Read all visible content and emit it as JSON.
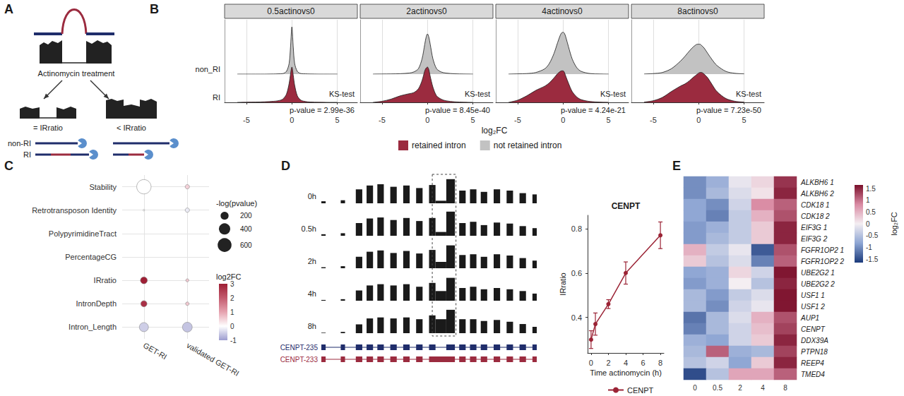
{
  "panel_letters": [
    "A",
    "B",
    "C",
    "D",
    "E"
  ],
  "panel_a": {
    "treatment": "Actinomycin treatment",
    "results": [
      "= IRratio",
      "< IRratio"
    ],
    "transcripts": [
      "non-RI",
      "RI"
    ]
  },
  "panel_d_tracks": {
    "window": [
      0,
      100
    ],
    "height_range": [
      0,
      1
    ],
    "segments": [
      [
        0,
        2
      ],
      [
        9,
        11
      ],
      [
        16,
        19
      ],
      [
        21,
        24
      ],
      [
        26,
        29
      ],
      [
        32,
        35
      ],
      [
        38,
        41
      ],
      [
        44,
        47
      ],
      [
        50,
        53
      ],
      [
        53,
        58
      ],
      [
        58,
        62
      ],
      [
        64,
        67
      ],
      [
        69,
        72
      ],
      [
        74,
        77
      ],
      [
        80,
        83
      ],
      [
        86,
        89
      ],
      [
        92,
        95
      ],
      [
        98,
        100
      ]
    ],
    "tracks": [
      {
        "label": "0h",
        "heights": [
          0.08,
          0.12,
          0.55,
          0.7,
          0.75,
          0.65,
          0.7,
          0.6,
          0.72,
          0.1,
          0.95,
          0.5,
          0.55,
          0.45,
          0.55,
          0.5,
          0.4,
          0.35
        ]
      },
      {
        "label": "0.5h",
        "heights": [
          0.06,
          0.1,
          0.5,
          0.68,
          0.72,
          0.62,
          0.7,
          0.58,
          0.7,
          0.15,
          0.95,
          0.5,
          0.55,
          0.42,
          0.52,
          0.48,
          0.38,
          0.3
        ]
      },
      {
        "label": "2h",
        "heights": [
          0.04,
          0.08,
          0.45,
          0.65,
          0.7,
          0.6,
          0.68,
          0.58,
          0.72,
          0.25,
          0.9,
          0.52,
          0.55,
          0.45,
          0.55,
          0.5,
          0.4,
          0.3
        ]
      },
      {
        "label": "4h",
        "heights": [
          0.03,
          0.06,
          0.4,
          0.6,
          0.65,
          0.6,
          0.65,
          0.55,
          0.7,
          0.38,
          0.9,
          0.5,
          0.55,
          0.45,
          0.5,
          0.45,
          0.38,
          0.28
        ]
      },
      {
        "label": "8h",
        "heights": [
          0.02,
          0.05,
          0.35,
          0.58,
          0.62,
          0.58,
          0.62,
          0.55,
          0.7,
          0.55,
          0.92,
          0.55,
          0.55,
          0.48,
          0.52,
          0.45,
          0.36,
          0.25
        ]
      }
    ],
    "highlight": [
      51.5,
      62.5
    ],
    "transcripts": [
      {
        "name": "CENPT-235",
        "color": "#1f2d6b",
        "exons": [
          [
            0,
            2
          ],
          [
            9,
            11
          ],
          [
            16,
            19
          ],
          [
            21,
            24
          ],
          [
            26,
            29
          ],
          [
            32,
            35
          ],
          [
            38,
            41
          ],
          [
            44,
            47
          ],
          [
            50,
            53
          ],
          [
            58,
            62
          ],
          [
            64,
            67
          ],
          [
            69,
            72
          ],
          [
            74,
            77
          ],
          [
            80,
            83
          ],
          [
            86,
            89
          ],
          [
            92,
            95
          ],
          [
            98,
            100
          ]
        ]
      },
      {
        "name": "CENPT-233",
        "color": "#9b2b3f",
        "exons": [
          [
            0,
            2
          ],
          [
            9,
            11
          ],
          [
            16,
            19
          ],
          [
            21,
            24
          ],
          [
            26,
            29
          ],
          [
            32,
            35
          ],
          [
            38,
            41
          ],
          [
            44,
            47
          ],
          [
            50,
            62
          ],
          [
            64,
            67
          ],
          [
            69,
            72
          ],
          [
            74,
            77
          ],
          [
            80,
            83
          ],
          [
            86,
            89
          ],
          [
            92,
            95
          ],
          [
            98,
            100
          ]
        ]
      }
    ]
  },
  "chart_data": [
    {
      "type": "ridgeline",
      "x": [
        -6,
        -5,
        -4,
        -3,
        -2,
        -1.5,
        -1,
        -0.6,
        -0.3,
        -0.15,
        0,
        0.15,
        0.3,
        0.6,
        1,
        1.5,
        2,
        3,
        4,
        5
      ],
      "xlim": [
        -7.4,
        7.2
      ],
      "xticks": [
        -5,
        0,
        5
      ],
      "ylim": [
        0,
        1
      ],
      "grid": true,
      "tick_labels": "x",
      "x_label": "log₂FC",
      "rows": [
        "non_RI",
        "RI"
      ],
      "legend": "bottom",
      "facets": [
        {
          "title": "0.5actinovs0",
          "annotation": [
            "KS-test",
            "p-value = 2.99e-36"
          ],
          "series": [
            {
              "name": "retained intron",
              "row": "RI",
              "color": "#9b2b3f",
              "values": [
                0,
                0.003,
                0.005,
                0.01,
                0.02,
                0.03,
                0.06,
                0.15,
                0.35,
                0.52,
                0.65,
                0.5,
                0.32,
                0.12,
                0.04,
                0.015,
                0.006,
                0.002,
                0,
                0
              ]
            },
            {
              "name": "not retained intron",
              "row": "non_RI",
              "color": "#c2c2c2",
              "values": [
                0,
                0,
                0,
                0,
                0.002,
                0.005,
                0.01,
                0.05,
                0.2,
                0.5,
                0.87,
                0.5,
                0.2,
                0.05,
                0.01,
                0.005,
                0.002,
                0,
                0,
                0
              ]
            }
          ]
        },
        {
          "title": "2actinovs0",
          "annotation": [
            "KS-test",
            "p-value = 8.45e-40"
          ],
          "series": [
            {
              "name": "retained intron",
              "row": "RI",
              "color": "#9b2b3f",
              "values": [
                0,
                0.02,
                0.06,
                0.12,
                0.16,
                0.18,
                0.25,
                0.4,
                0.58,
                0.63,
                0.65,
                0.6,
                0.48,
                0.28,
                0.12,
                0.06,
                0.03,
                0.01,
                0.003,
                0
              ]
            },
            {
              "name": "not retained intron",
              "row": "non_RI",
              "color": "#c2c2c2",
              "values": [
                0,
                0.002,
                0.004,
                0.008,
                0.02,
                0.04,
                0.1,
                0.28,
                0.55,
                0.68,
                0.74,
                0.68,
                0.55,
                0.28,
                0.1,
                0.04,
                0.02,
                0.006,
                0.002,
                0
              ]
            }
          ]
        },
        {
          "title": "4actinovs0",
          "annotation": [
            "KS-test",
            "p-value = 4.24e-21"
          ],
          "series": [
            {
              "name": "retained intron",
              "row": "RI",
              "color": "#9b2b3f",
              "values": [
                0,
                0.04,
                0.12,
                0.22,
                0.3,
                0.36,
                0.45,
                0.53,
                0.57,
                0.58,
                0.58,
                0.55,
                0.48,
                0.35,
                0.2,
                0.1,
                0.05,
                0.015,
                0.005,
                0
              ]
            },
            {
              "name": "not retained intron",
              "row": "non_RI",
              "color": "#c2c2c2",
              "values": [
                0,
                0.005,
                0.01,
                0.03,
                0.1,
                0.2,
                0.38,
                0.58,
                0.72,
                0.76,
                0.77,
                0.75,
                0.68,
                0.5,
                0.28,
                0.12,
                0.05,
                0.01,
                0.003,
                0
              ]
            }
          ]
        },
        {
          "title": "8actinovs0",
          "annotation": [
            "KS-test",
            "p-value = 7.23e-50"
          ],
          "series": [
            {
              "name": "retained intron",
              "row": "RI",
              "color": "#9b2b3f",
              "values": [
                0.005,
                0.03,
                0.09,
                0.2,
                0.3,
                0.34,
                0.4,
                0.46,
                0.5,
                0.52,
                0.54,
                0.55,
                0.55,
                0.52,
                0.45,
                0.32,
                0.2,
                0.07,
                0.02,
                0.005
              ]
            },
            {
              "name": "not retained intron",
              "row": "non_RI",
              "color": "#c2c2c2",
              "values": [
                0.002,
                0.01,
                0.03,
                0.1,
                0.24,
                0.33,
                0.43,
                0.5,
                0.54,
                0.55,
                0.55,
                0.55,
                0.53,
                0.48,
                0.38,
                0.26,
                0.16,
                0.05,
                0.015,
                0.005
              ]
            }
          ]
        }
      ]
    },
    {
      "type": "dot",
      "categories": [
        "Stability",
        "Retrotransposon Identity",
        "PolypyrimidineTract",
        "PercentageCG",
        "IRratio",
        "IntronDepth",
        "Intron_Length"
      ],
      "series": [
        {
          "name": "GET-RI",
          "values": [
            0.0,
            0.0,
            null,
            null,
            3.0,
            2.7,
            -0.5
          ],
          "sizes": [
            650,
            8,
            null,
            null,
            150,
            120,
            260
          ]
        },
        {
          "name": "validated GET-RI",
          "values": [
            0.5,
            -0.2,
            null,
            null,
            0.6,
            0.6,
            -0.6
          ],
          "sizes": [
            60,
            60,
            null,
            null,
            30,
            40,
            300
          ]
        }
      ],
      "size_legend": {
        "title": "-log(pvalue)",
        "values": [
          200,
          400,
          600
        ]
      },
      "color_legend": {
        "title": "log2FC",
        "range": [
          -1,
          3
        ],
        "ticks": [
          -1,
          0,
          1,
          2,
          3
        ],
        "colors": [
          "#9c9ccf",
          "#ffffff",
          "#e6a3b0",
          "#c35a6e",
          "#9e1f35"
        ]
      },
      "grid": true
    },
    {
      "type": "line",
      "title": "CENPT",
      "x": [
        0,
        0.5,
        2,
        4,
        8
      ],
      "series": [
        {
          "name": "CENPT",
          "color": "#9b2335",
          "marker": "circle",
          "values": [
            0.3,
            0.37,
            0.46,
            0.6,
            0.77
          ],
          "errors": [
            0.04,
            0.05,
            0.02,
            0.05,
            0.06
          ]
        }
      ],
      "xlim": [
        -0.4,
        8.4
      ],
      "xticks": [
        0,
        2,
        4,
        6,
        8
      ],
      "ylim": [
        0.24,
        0.86
      ],
      "yticks": [
        0.4,
        0.6,
        0.8
      ],
      "x_label": "Time actinomycin (h)",
      "y_label": "IRratio",
      "legend": "bottom",
      "grid": false
    },
    {
      "type": "heatmap",
      "x": [
        "0",
        "0.5",
        "2",
        "4",
        "8"
      ],
      "y": [
        "ALKBH6 1",
        "ALKBH6 2",
        "CDK18 1",
        "CDK18 2",
        "EIF3G 1",
        "EIF3G 2",
        "FGFR1OP2 1",
        "FGFR1OP2 2",
        "UBE2G2 1",
        "UBE2G2 2",
        "USF1 1",
        "USF1 2",
        "AUP1",
        "CENPT",
        "DDX39A",
        "PTPN18",
        "REEP4",
        "TMED4"
      ],
      "cells": [
        [
          -1.0,
          -0.7,
          -0.1,
          0.2,
          1.4
        ],
        [
          -1.0,
          -0.6,
          -0.2,
          0.1,
          1.5
        ],
        [
          -0.8,
          -1.0,
          -0.3,
          0.8,
          1.1
        ],
        [
          -0.8,
          -1.1,
          -0.4,
          0.5,
          1.2
        ],
        [
          -0.9,
          -0.7,
          -0.4,
          0.3,
          1.5
        ],
        [
          -0.9,
          -0.6,
          -0.4,
          0.3,
          1.5
        ],
        [
          0.5,
          -0.4,
          -0.1,
          -1.4,
          1.2
        ],
        [
          0.3,
          -0.5,
          -0.2,
          -1.1,
          1.1
        ],
        [
          -0.8,
          -0.7,
          0.2,
          -0.3,
          1.6
        ],
        [
          -0.9,
          -0.7,
          0.0,
          -0.5,
          1.5
        ],
        [
          -0.6,
          -0.9,
          -0.4,
          -0.2,
          1.6
        ],
        [
          -0.6,
          -1.0,
          -0.3,
          -0.1,
          1.6
        ],
        [
          -1.2,
          -0.6,
          -0.2,
          0.5,
          1.2
        ],
        [
          -1.1,
          -0.6,
          -0.3,
          0.4,
          1.3
        ],
        [
          -0.7,
          -0.8,
          -0.3,
          0.3,
          1.5
        ],
        [
          -0.6,
          1.1,
          -0.7,
          -0.6,
          1.3
        ],
        [
          -0.5,
          -0.3,
          -0.8,
          0.3,
          1.5
        ],
        [
          -1.5,
          -0.5,
          0.6,
          0.6,
          1.1
        ]
      ],
      "color_label": "log₂FC",
      "color_range": [
        -1.65,
        1.65
      ],
      "color_ticks": [
        -1.5,
        -1,
        -0.5,
        0,
        0.5,
        1,
        1.5
      ],
      "colors": [
        "#1b3a7b",
        "#8da5d3",
        "#f4eef2",
        "#d98aa3",
        "#7a0f2a"
      ]
    }
  ]
}
